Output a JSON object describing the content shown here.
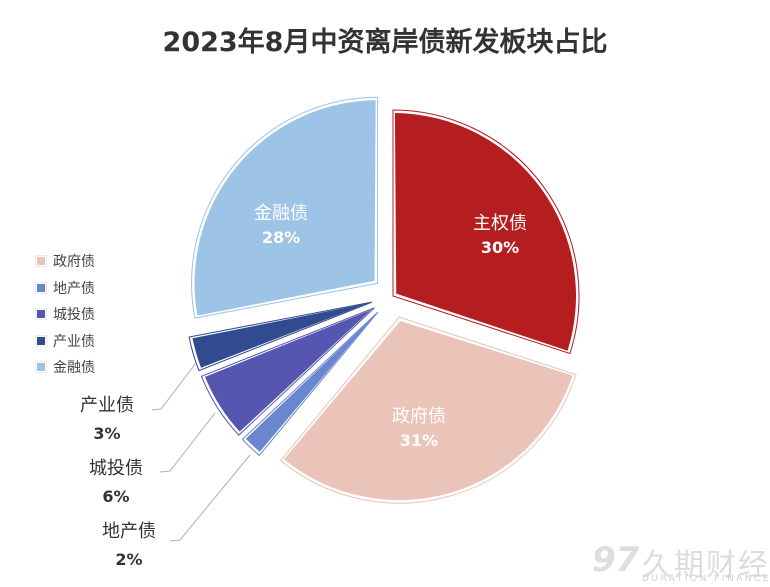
{
  "title": "2023年8月中资离岸债新发板块占比",
  "chart_data": {
    "type": "pie",
    "title": "2023年8月中资离岸债新发板块占比",
    "start_angle_deg": 0,
    "direction": "clockwise",
    "slices": [
      {
        "name": "主权债",
        "value": 30,
        "label": "30%",
        "color": "#b41e21",
        "explode": 0
      },
      {
        "name": "政府债",
        "value": 31,
        "label": "31%",
        "color": "#eac4b8",
        "explode": 22
      },
      {
        "name": "地产债",
        "value": 2,
        "label": "2%",
        "color": "#6a86cf",
        "explode": 22
      },
      {
        "name": "城投债",
        "value": 6,
        "label": "6%",
        "color": "#5456b0",
        "explode": 22
      },
      {
        "name": "产业债",
        "value": 3,
        "label": "3%",
        "color": "#324b90",
        "explode": 22
      },
      {
        "name": "金融债",
        "value": 28,
        "label": "28%",
        "color": "#9dc3e6",
        "explode": 20
      }
    ],
    "legend": {
      "position": "left",
      "entries": [
        "政府债",
        "地产债",
        "城投债",
        "产业债",
        "金融债"
      ]
    }
  },
  "legend": [
    {
      "label": "政府债",
      "color": "#eac4b8"
    },
    {
      "label": "地产债",
      "color": "#6a86cf"
    },
    {
      "label": "城投债",
      "color": "#5456b0"
    },
    {
      "label": "产业债",
      "color": "#324b90"
    },
    {
      "label": "金融债",
      "color": "#9dc3e6"
    }
  ],
  "labels": {
    "sovereign": {
      "name": "主权债",
      "pct": "30%"
    },
    "government": {
      "name": "政府债",
      "pct": "31%"
    },
    "financial": {
      "name": "金融债",
      "pct": "28%"
    },
    "industrial": {
      "name": "产业债",
      "pct": "3%"
    },
    "lgfv": {
      "name": "城投债",
      "pct": "6%"
    },
    "property": {
      "name": "地产债",
      "pct": "2%"
    }
  },
  "watermark": {
    "logo": "97",
    "name_cn": "久期财经",
    "name_en": "DURATION FINANCE"
  }
}
